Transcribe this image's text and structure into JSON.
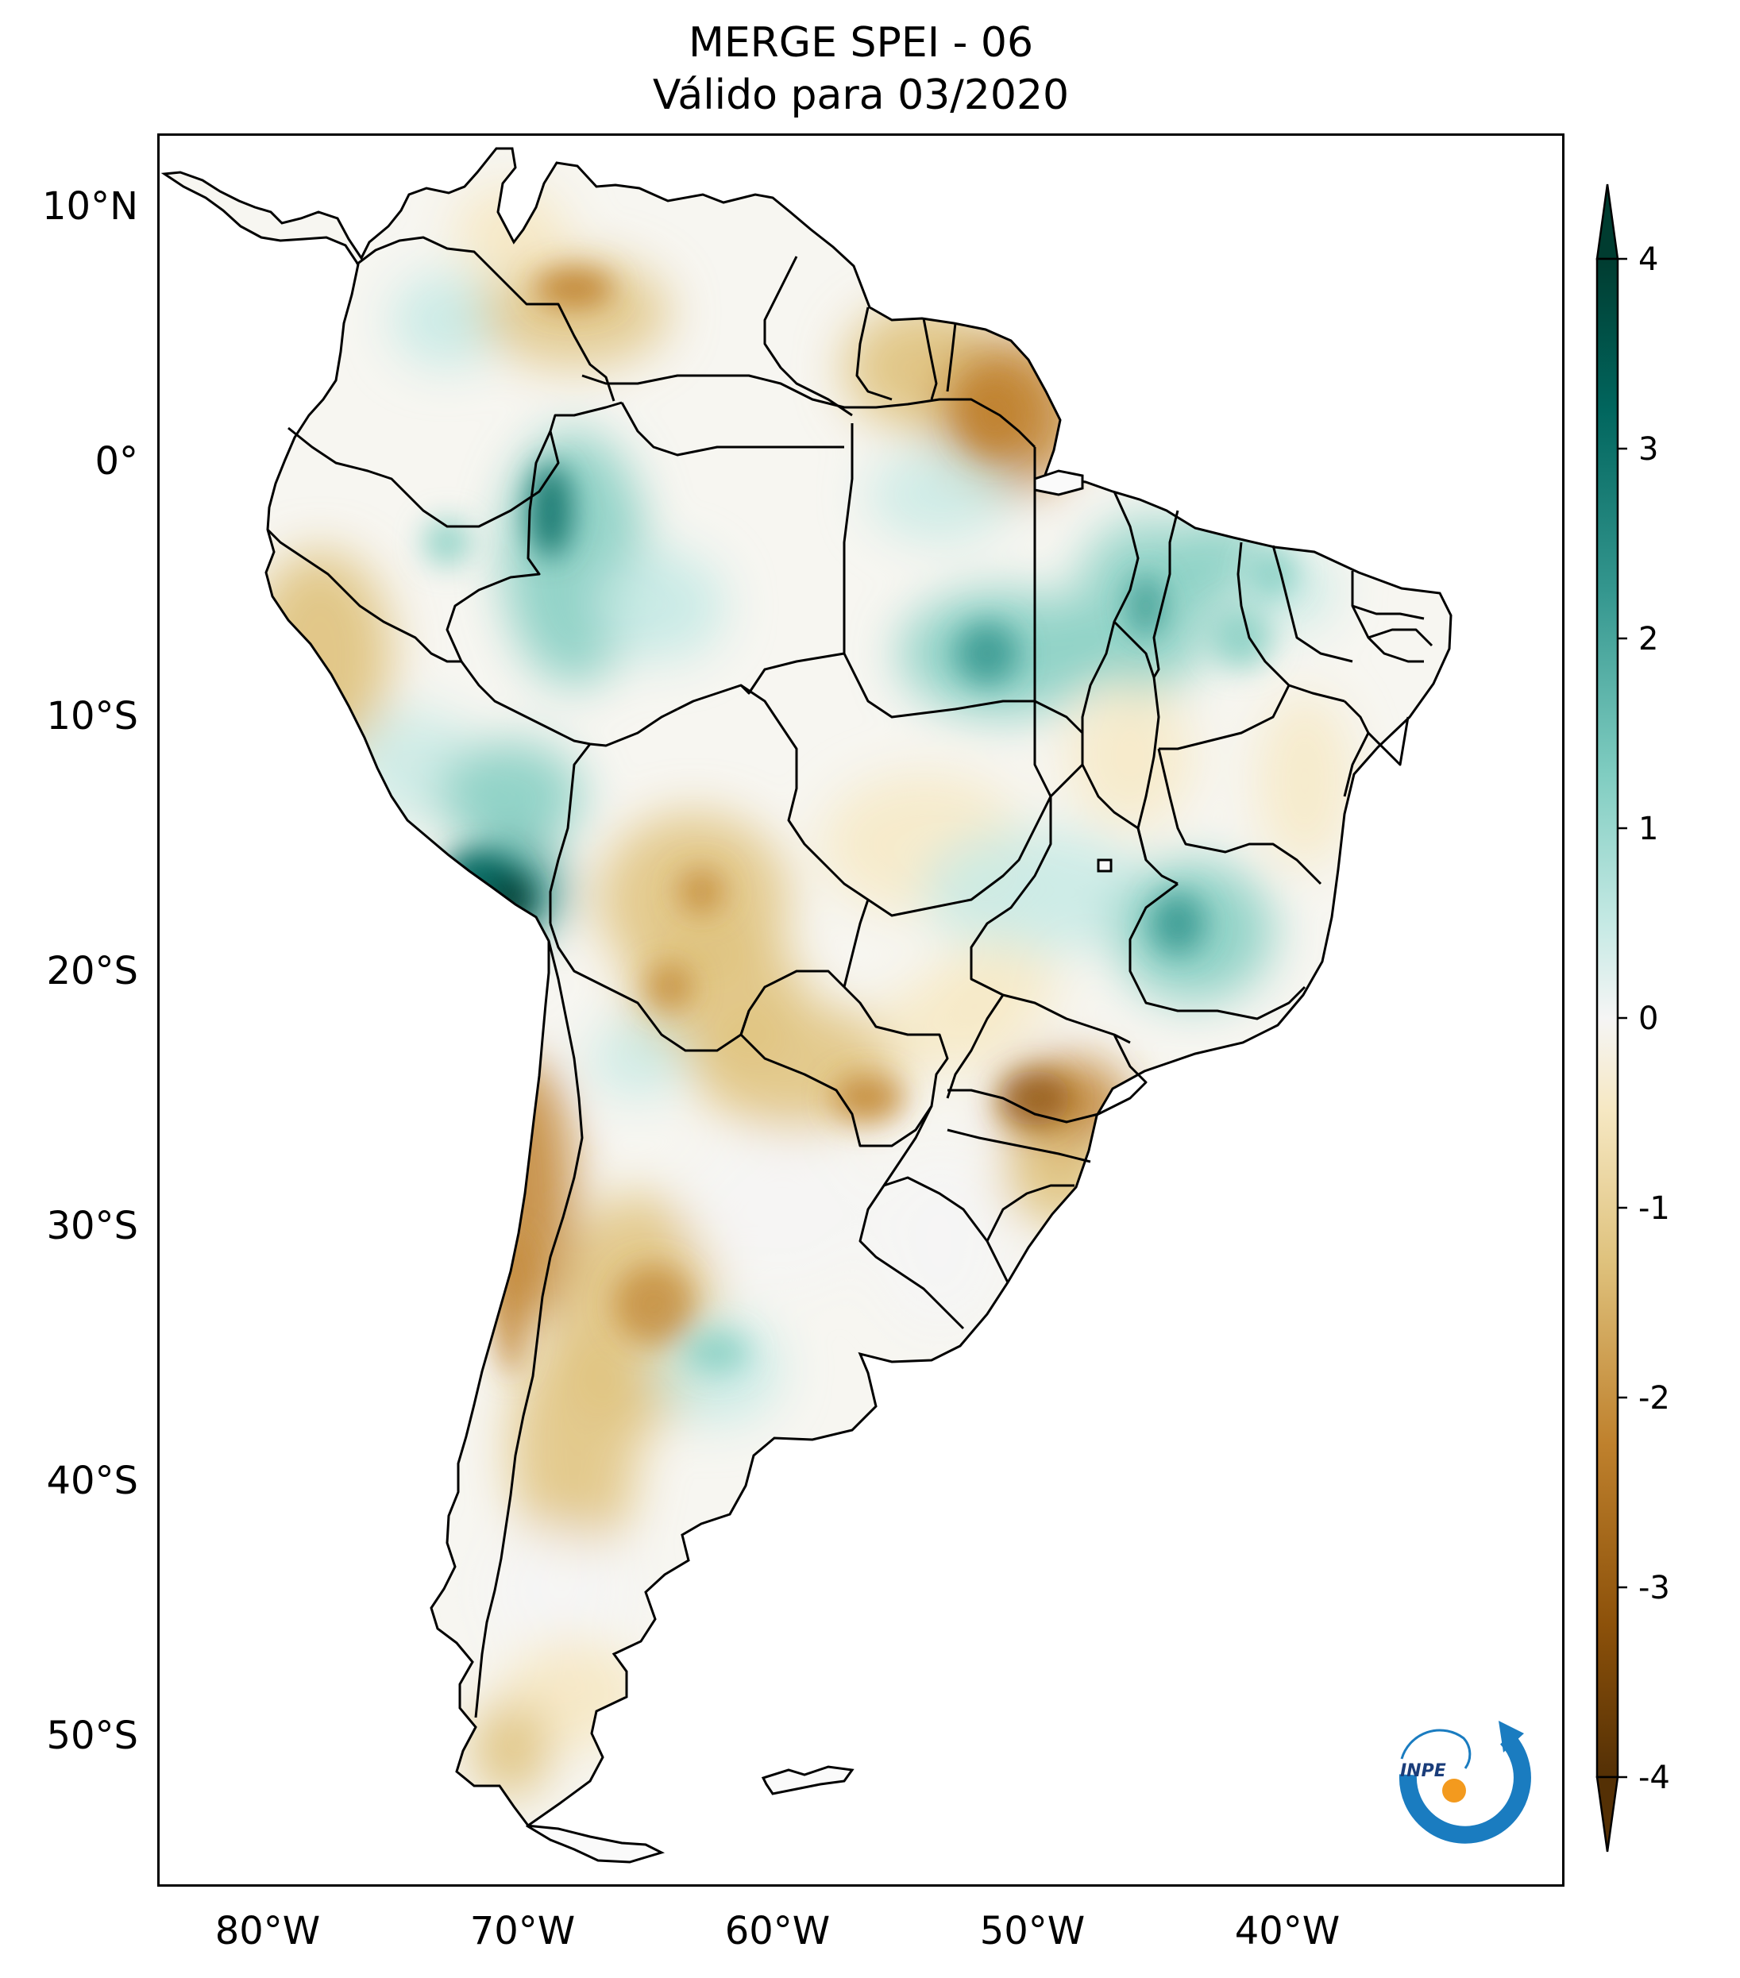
{
  "title": {
    "line1": "MERGE   SPEI - 06",
    "line2": "Válido para 03/2020"
  },
  "axes": {
    "lat_ticks": [
      "10°N",
      "0°",
      "10°S",
      "20°S",
      "30°S",
      "40°S",
      "50°S"
    ],
    "lon_ticks": [
      "80°W",
      "70°W",
      "60°W",
      "50°W",
      "40°W"
    ]
  },
  "colorbar": {
    "ticks": [
      "4",
      "3",
      "2",
      "1",
      "0",
      "-1",
      "-2",
      "-3",
      "-4"
    ],
    "range": [
      -4,
      4
    ],
    "colors": {
      "dry_extreme": "#543005",
      "dry_strong": "#8c510a",
      "dry_moderate": "#bf812d",
      "dry_mild": "#dfc27d",
      "dry_light": "#f6e8c3",
      "neutral": "#f5f5f5",
      "wet_light": "#c7eae5",
      "wet_mild": "#80cdc1",
      "wet_moderate": "#35978f",
      "wet_strong": "#01665e",
      "wet_extreme": "#003c30"
    }
  },
  "logo": {
    "text": "INPE",
    "color_arc": "#1a7cc0",
    "color_dot": "#f39a1e"
  }
}
